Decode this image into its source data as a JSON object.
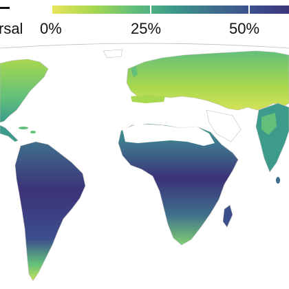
{
  "legend": {
    "partial_label": "rsal",
    "ticks": [
      "0%",
      "25%",
      "50%"
    ],
    "tick_values": [
      0,
      25,
      50
    ],
    "stops": [
      "#e7e55c",
      "#a8d84f",
      "#63c07a",
      "#3c9b8a",
      "#3f6f8c",
      "#3c4f8d",
      "#3c3278"
    ]
  },
  "map": {
    "ocean": "#ffffff",
    "coast": "#bdbdbd",
    "desert": "#ffffff"
  }
}
